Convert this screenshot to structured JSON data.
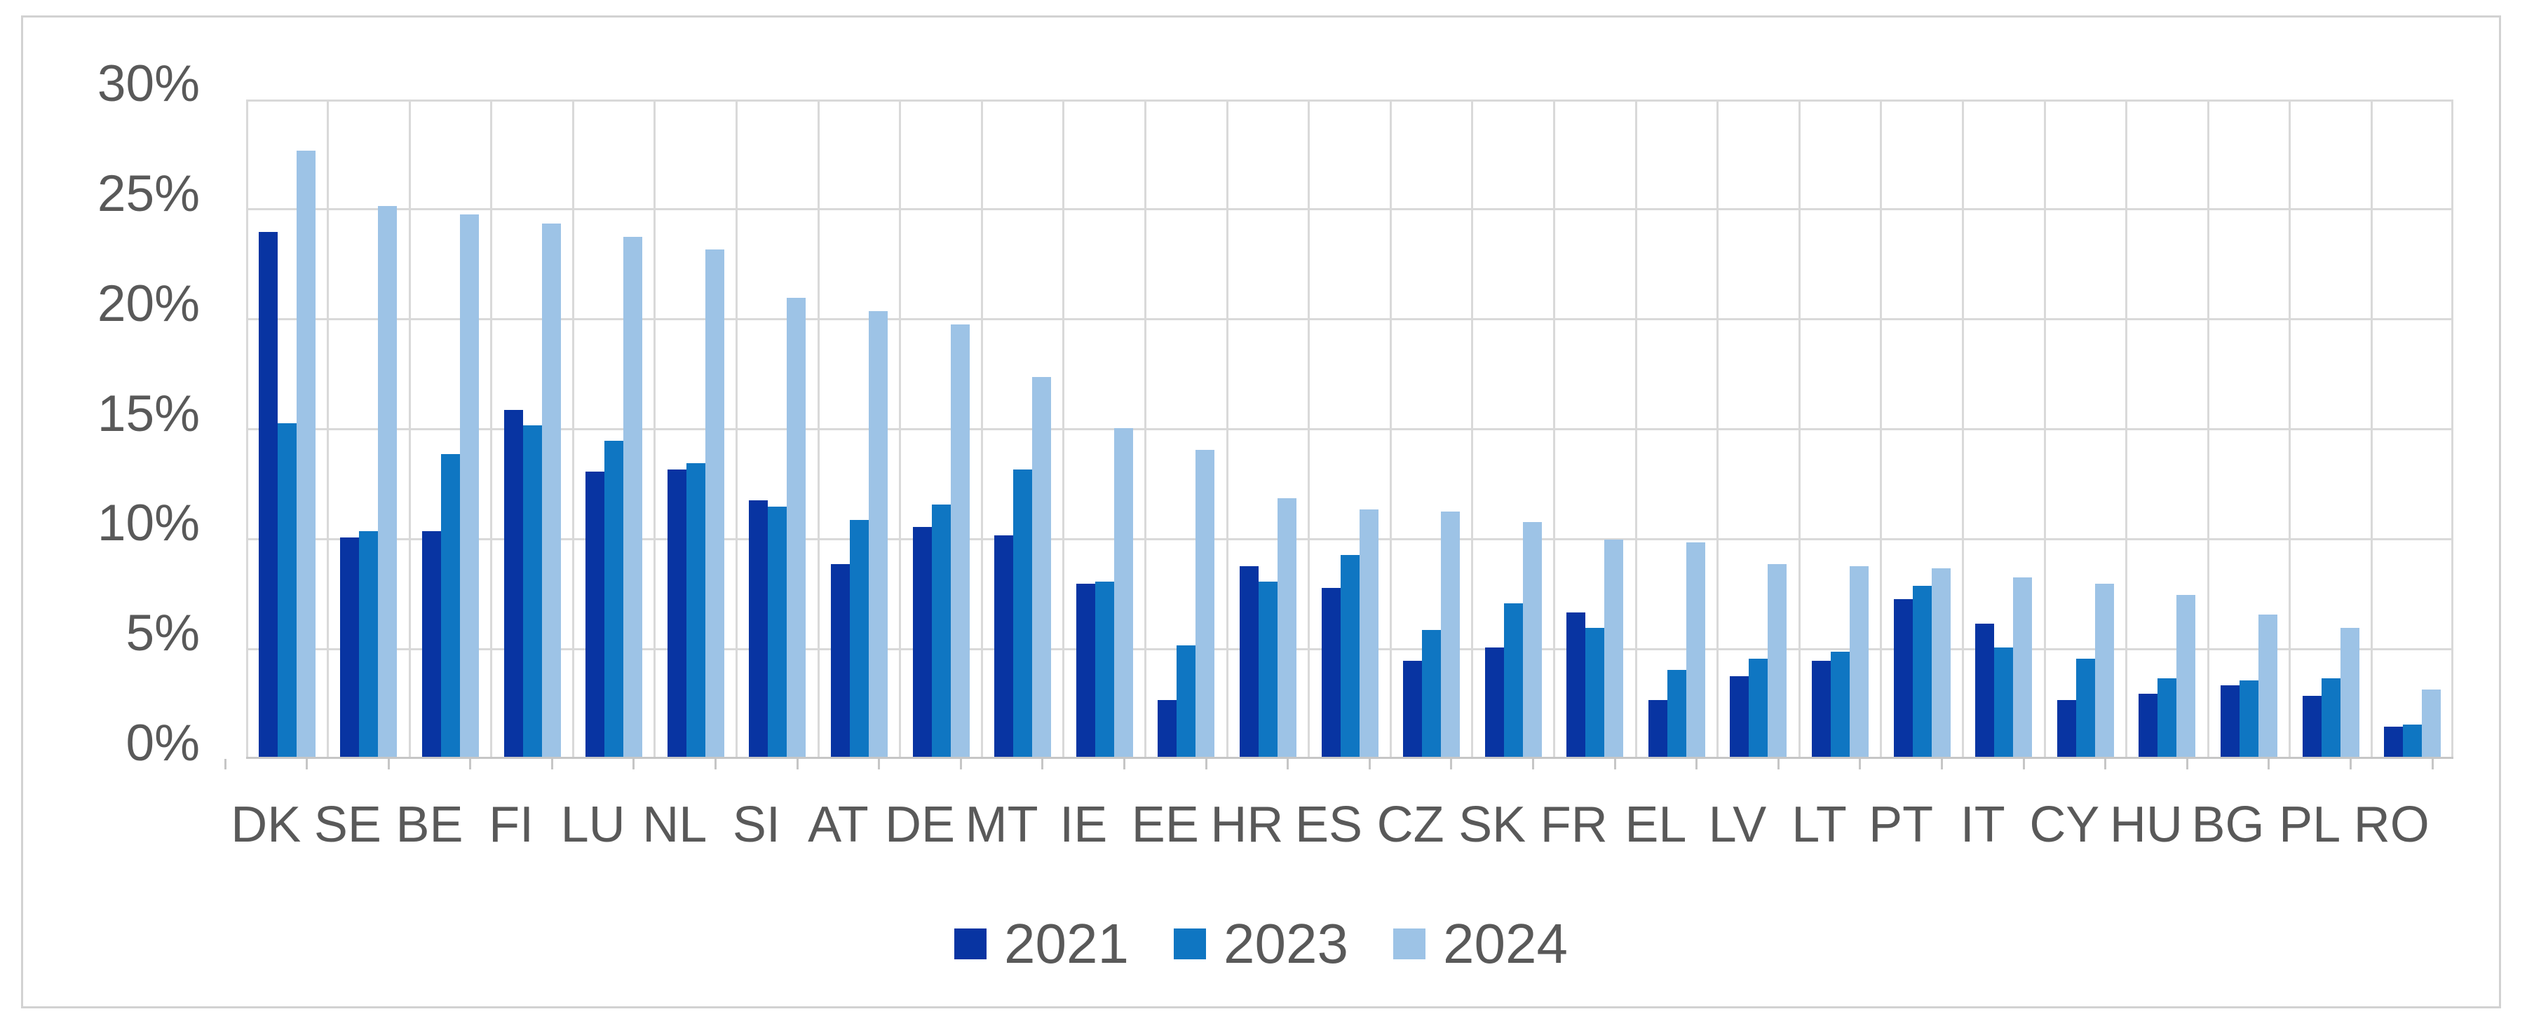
{
  "page": {
    "background": "#ffffff",
    "frame_border_color": "#d2d2d2"
  },
  "chart_data": {
    "type": "bar",
    "title": "",
    "xlabel": "",
    "ylabel": "",
    "unit": "%",
    "ylim": [
      0,
      30
    ],
    "y_tick_step": 5,
    "y_tick_labels_top_to_bottom": [
      "30%",
      "25%",
      "20%",
      "15%",
      "10%",
      "5%",
      "0%"
    ],
    "grid": "both",
    "legend_position": "bottom-center",
    "categories": [
      "DK",
      "SE",
      "BE",
      "FI",
      "LU",
      "NL",
      "SI",
      "AT",
      "DE",
      "MT",
      "IE",
      "EE",
      "HR",
      "ES",
      "CZ",
      "SK",
      "FR",
      "EL",
      "LV",
      "LT",
      "PT",
      "IT",
      "CY",
      "HU",
      "BG",
      "PL",
      "RO"
    ],
    "series": [
      {
        "name": "2021",
        "color": "#0834a2",
        "values": [
          23.9,
          10.0,
          10.3,
          15.8,
          13.0,
          13.1,
          11.7,
          8.8,
          10.5,
          10.1,
          7.9,
          2.6,
          8.7,
          7.7,
          4.4,
          5.0,
          6.6,
          2.6,
          3.7,
          4.4,
          7.2,
          6.1,
          2.6,
          2.9,
          3.3,
          2.8,
          1.4
        ]
      },
      {
        "name": "2023",
        "color": "#0f76c2",
        "values": [
          15.2,
          10.3,
          13.8,
          15.1,
          14.4,
          13.4,
          11.4,
          10.8,
          11.5,
          13.1,
          8.0,
          5.1,
          8.0,
          9.2,
          5.8,
          7.0,
          5.9,
          4.0,
          4.5,
          4.8,
          7.8,
          5.0,
          4.5,
          3.6,
          3.5,
          3.6,
          1.5
        ]
      },
      {
        "name": "2024",
        "color": "#9dc3e6",
        "values": [
          27.6,
          25.1,
          24.7,
          24.3,
          23.7,
          23.1,
          20.9,
          20.3,
          19.7,
          17.3,
          15.0,
          14.0,
          11.8,
          11.3,
          11.2,
          10.7,
          9.9,
          9.8,
          8.8,
          8.7,
          8.6,
          8.2,
          7.9,
          7.4,
          6.5,
          5.9,
          3.1
        ]
      }
    ],
    "style": {
      "gridline_color": "#d9d9d9",
      "plot_border_color": "#d9d9d9",
      "axis_line_color": "#c6c6c6",
      "tick_label_color": "#595959"
    }
  }
}
